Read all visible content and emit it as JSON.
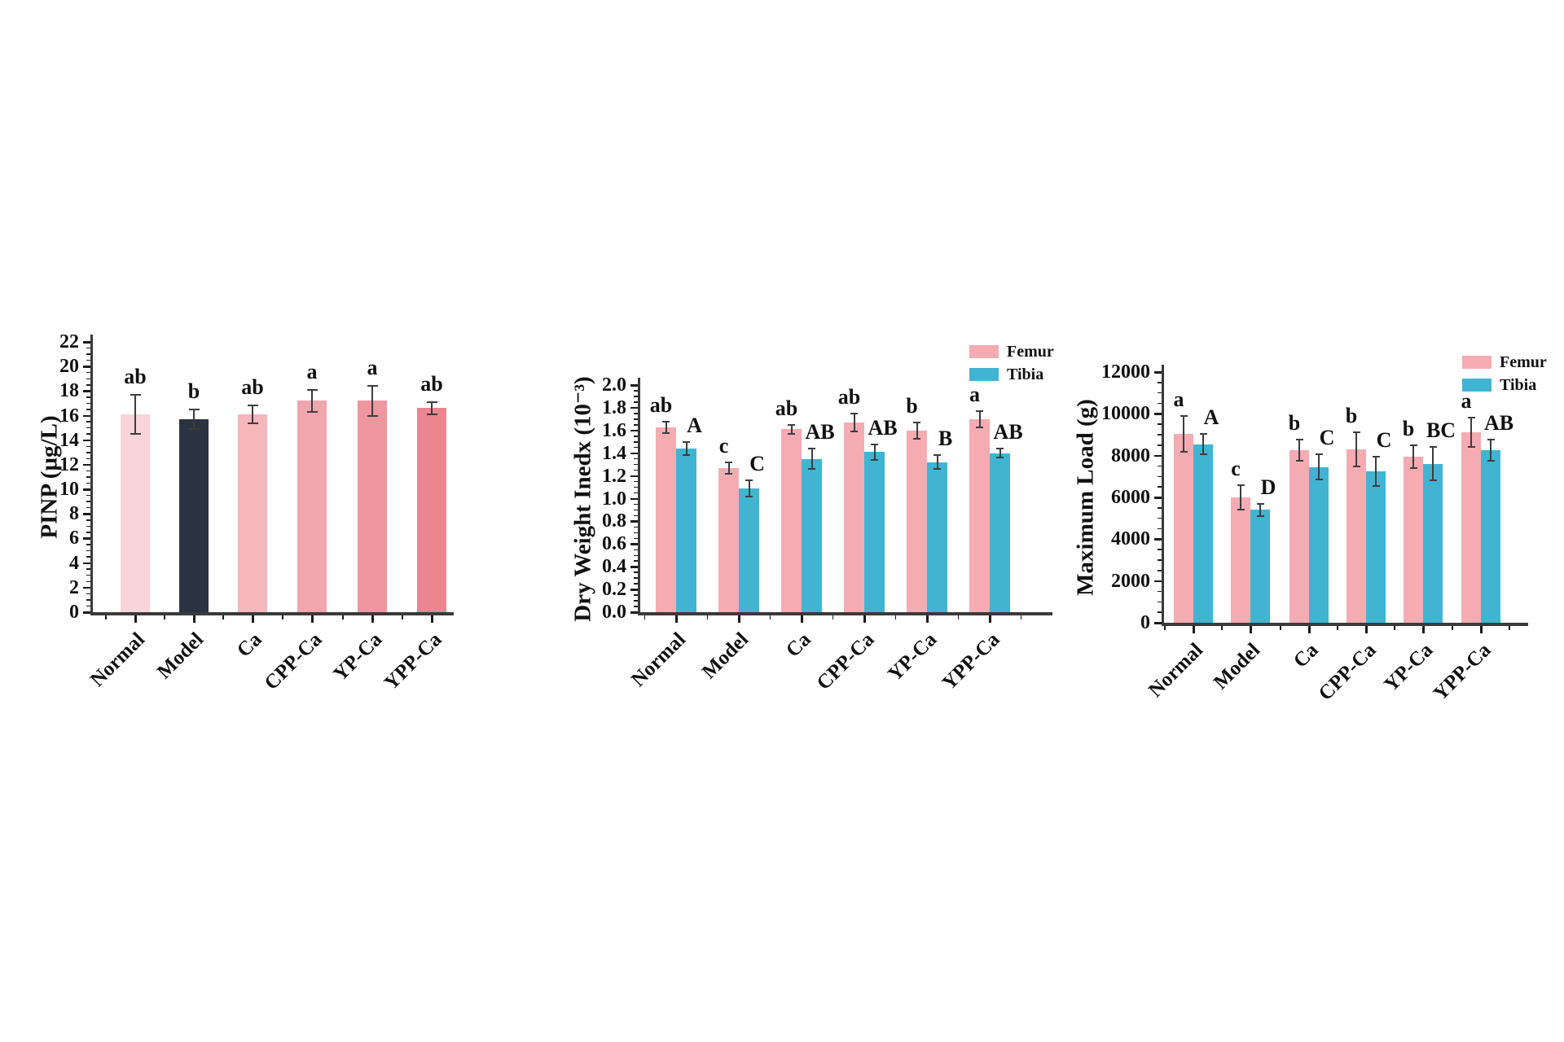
{
  "figure": {
    "background": "#ffffff",
    "axis_color": "#3a3a3a",
    "error_bar_color": "#3d3d3d",
    "text_color": "#111111"
  },
  "chart_data": [
    {
      "type": "bar",
      "title": "",
      "xlabel": "",
      "ylabel": "PINP (µg/L)",
      "categories": [
        "Normal",
        "Model",
        "Ca",
        "CPP-Ca",
        "YP-Ca",
        "YPP-Ca"
      ],
      "values": [
        16.1,
        15.7,
        16.1,
        17.2,
        17.2,
        16.6
      ],
      "errors": [
        1.6,
        0.8,
        0.7,
        0.9,
        1.2,
        0.5
      ],
      "sig_letters": [
        "ab",
        "b",
        "ab",
        "a",
        "a",
        "ab"
      ],
      "bar_colors": [
        "#f8d5da",
        "#2b3242",
        "#f5b6bc",
        "#f1a5ad",
        "#ee97a0",
        "#eb8590"
      ],
      "ylim": [
        0,
        22
      ],
      "y_ticks": [
        "0",
        "2",
        "4",
        "6",
        "8",
        "10",
        "12",
        "14",
        "16",
        "18",
        "20",
        "22"
      ],
      "grid": false,
      "legend": null
    },
    {
      "type": "grouped_bar",
      "title": "",
      "xlabel": "",
      "ylabel": "Dry Weight Inedx (10⁻³)",
      "categories": [
        "Normal",
        "Model",
        "Ca",
        "CPP-Ca",
        "YP-Ca",
        "YPP-Ca"
      ],
      "series": [
        {
          "name": "Femur",
          "color": "#f4abb2",
          "values": [
            1.63,
            1.27,
            1.61,
            1.67,
            1.6,
            1.7
          ],
          "errors": [
            0.05,
            0.05,
            0.04,
            0.08,
            0.07,
            0.07
          ],
          "letters": [
            "ab",
            "c",
            "ab",
            "ab",
            "b",
            "a"
          ]
        },
        {
          "name": "Tibia",
          "color": "#41b4d2",
          "values": [
            1.44,
            1.09,
            1.35,
            1.41,
            1.32,
            1.4
          ],
          "errors": [
            0.06,
            0.07,
            0.09,
            0.07,
            0.06,
            0.04
          ],
          "letters": [
            "A",
            "C",
            "AB",
            "AB",
            "B",
            "AB"
          ]
        }
      ],
      "ylim": [
        0,
        2.0
      ],
      "y_ticks": [
        "0.0",
        "0.2",
        "0.4",
        "0.6",
        "0.8",
        "1.0",
        "1.2",
        "1.4",
        "1.6",
        "1.8",
        "2.0"
      ],
      "grid": false,
      "legend": {
        "position": "top-right",
        "entries": [
          "Femur",
          "Tibia"
        ]
      }
    },
    {
      "type": "grouped_bar",
      "title": "",
      "xlabel": "",
      "ylabel": "Maximum Load (g)",
      "categories": [
        "Normal",
        "Model",
        "Ca",
        "CPP-Ca",
        "YP-Ca",
        "YPP-Ca"
      ],
      "series": [
        {
          "name": "Femur",
          "color": "#f4abb2",
          "values": [
            9050,
            6000,
            8250,
            8300,
            7950,
            9100
          ],
          "errors": [
            850,
            600,
            500,
            800,
            550,
            700
          ],
          "letters": [
            "a",
            "c",
            "b",
            "b",
            "b",
            "a"
          ]
        },
        {
          "name": "Tibia",
          "color": "#41b4d2",
          "values": [
            8550,
            5400,
            7450,
            7250,
            7600,
            8250
          ],
          "errors": [
            500,
            300,
            600,
            700,
            800,
            500
          ],
          "letters": [
            "A",
            "D",
            "C",
            "C",
            "BC",
            "AB"
          ]
        }
      ],
      "ylim": [
        0,
        12000
      ],
      "y_ticks": [
        "0",
        "2000",
        "4000",
        "6000",
        "8000",
        "10000",
        "12000"
      ],
      "grid": false,
      "legend": {
        "position": "top-right",
        "entries": [
          "Femur",
          "Tibia"
        ]
      }
    }
  ]
}
